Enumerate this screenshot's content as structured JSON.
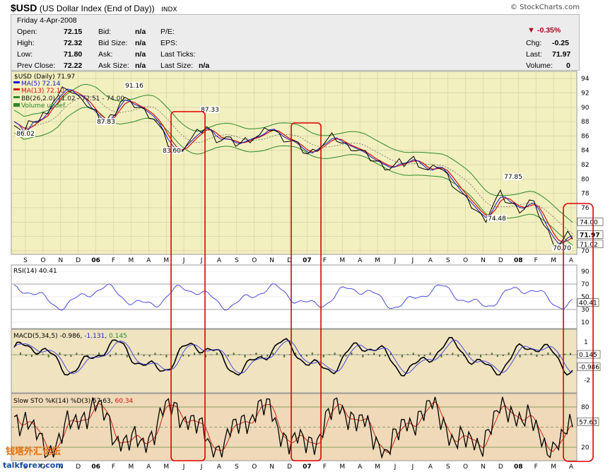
{
  "header": {
    "symbol": "$USD",
    "description": "(US Dollar Index (End of Day))",
    "exchange": "INDX",
    "copyright": "© StockCharts.com"
  },
  "quote": {
    "date": "Friday   4-Apr-2008",
    "open_label": "Open:",
    "open": "72.15",
    "high_label": "High:",
    "high": "72.32",
    "low_label": "Low:",
    "low": "71.80",
    "prev_label": "Prev Close:",
    "prev": "72.22",
    "bid_label": "Bid:",
    "bid": "n/a",
    "bidsize_label": "Bid Size:",
    "bidsize": "n/a",
    "ask_label": "Ask:",
    "ask": "n/a",
    "asksize_label": "Ask Size:",
    "asksize": "n/a",
    "pe_label": "P/E:",
    "eps_label": "EPS:",
    "lastticks_label": "Last Ticks:",
    "lastsize_label": "Last Size:",
    "lastsize": "n/a",
    "pct_change": "-0.35%",
    "chg_label": "Chg:",
    "chg": "-0.25",
    "last_label": "Last:",
    "last": "71.97",
    "volume_label": "Volume:",
    "volume": "0"
  },
  "legend": {
    "price": "$USD (Daily) 71.97",
    "ma5": "MA(5) 72.14",
    "ma13": "MA(13) 72.10",
    "bb": "BB(26,2.0) 71.02 - 72.51 - 74.00",
    "volume": "Volume undef",
    "rsi": "RSI(14) 40.41",
    "macd_name": "MACD(5,34,5)",
    "macd_v1": "-0.986",
    "macd_v2": "-1.131",
    "macd_v3": "0.145",
    "sto_name": "Slow STO %K(14) %D(3)",
    "sto_k": "57.63",
    "sto_d": "60.34"
  },
  "watermark": {
    "cn": "钱塔外汇论坛",
    "site": "talkforex.com"
  },
  "colors": {
    "price_bg": "#f3f0c0",
    "rsi_bg": "#ffffff",
    "macd_bg": "#efe3c0",
    "sto_bg": "#efd9b8",
    "price_line": "#000000",
    "ma5": "#1a1ad0",
    "ma13": "#d01010",
    "bb": "#2a8a2a",
    "rsi_line": "#3a3ad8",
    "highlight": "#e00000"
  },
  "chart_data": [
    {
      "type": "line",
      "title": "$USD (Daily) 71.97",
      "x_ticks": [
        "S",
        "O",
        "N",
        "D",
        "06",
        "F",
        "M",
        "A",
        "M",
        "J",
        "J",
        "A",
        "S",
        "O",
        "N",
        "D",
        "07",
        "F",
        "M",
        "A",
        "M",
        "J",
        "J",
        "A",
        "S",
        "O",
        "N",
        "D",
        "08",
        "F",
        "M",
        "A"
      ],
      "ylim": [
        69.5,
        95
      ],
      "y_ticks": [
        70,
        72,
        74,
        76,
        78,
        80,
        82,
        84,
        86,
        88,
        90,
        92,
        94
      ],
      "right_tags": [
        "74.00",
        "71.97",
        "71.02"
      ],
      "annotations": [
        {
          "label": "86.02",
          "x": "S",
          "y": 86.02
        },
        {
          "label": "87.83",
          "x": "F",
          "y": 87.83
        },
        {
          "label": "91.16",
          "x": "F",
          "y": 91.16
        },
        {
          "label": "83.60",
          "x": "M",
          "y": 83.6
        },
        {
          "label": "87.33",
          "x": "J",
          "y": 87.33
        },
        {
          "label": "74.48",
          "x": "N",
          "y": 74.48
        },
        {
          "label": "77.85",
          "x": "D",
          "y": 77.85
        },
        {
          "label": "70.70",
          "x": "M",
          "y": 70.7
        }
      ],
      "series": [
        {
          "name": "$USD (Daily) 71.97",
          "values": [
            88.0,
            87.2,
            86.2,
            87.6,
            88.3,
            87.9,
            88.9,
            89.6,
            90.8,
            91.3,
            92.3,
            92.8,
            92.0,
            91.5,
            91.7,
            90.4,
            89.6,
            89.1,
            88.1,
            88.0,
            88.6,
            89.4,
            90.8,
            91.2,
            90.5,
            90.3,
            90.0,
            89.5,
            89.0,
            88.5,
            87.4,
            86.2,
            84.9,
            84.3,
            83.6,
            84.4,
            85.1,
            85.7,
            86.4,
            86.8,
            87.3,
            86.4,
            85.6,
            85.5,
            85.7,
            85.3,
            84.9,
            85.0,
            85.4,
            85.6,
            85.9,
            86.0,
            86.6,
            87.1,
            86.8,
            86.1,
            85.7,
            85.4,
            85.2,
            84.6,
            84.0,
            83.5,
            83.8,
            84.4,
            84.8,
            85.3,
            85.9,
            85.6,
            85.0,
            84.7,
            84.5,
            84.1,
            83.9,
            83.4,
            82.9,
            82.5,
            82.2,
            81.8,
            81.5,
            81.8,
            82.3,
            82.1,
            82.6,
            82.8,
            82.2,
            81.6,
            81.1,
            81.4,
            81.9,
            81.3,
            80.4,
            79.5,
            78.6,
            77.8,
            77.1,
            76.3,
            75.6,
            74.8,
            74.5,
            75.8,
            77.0,
            77.9,
            77.1,
            76.6,
            76.3,
            75.8,
            76.0,
            76.9,
            76.4,
            75.2,
            73.6,
            72.5,
            71.4,
            70.7,
            71.4,
            72.2,
            71.97
          ]
        },
        {
          "name": "MA(5) 72.14",
          "values": "smoothed price"
        },
        {
          "name": "MA(13) 72.10",
          "values": "smoothed price"
        },
        {
          "name": "BB(26,2.0) 71.02 - 72.51 - 74.00",
          "values": "bands around price"
        }
      ]
    },
    {
      "type": "line",
      "title": "RSI(14) 40.41",
      "ylim": [
        0,
        100
      ],
      "y_ticks": [
        10,
        30,
        50,
        70,
        90
      ],
      "ref_lines": [
        30,
        70
      ],
      "right_tag": "40.41"
    },
    {
      "type": "line",
      "title": "MACD(5,34,5) -0.986, -1.131, 0.145",
      "ylim": [
        -3,
        2
      ],
      "y_ticks": [
        -2,
        1
      ],
      "right_tags": [
        "0.145",
        "-0.986"
      ]
    },
    {
      "type": "line",
      "title": "Slow STO %K(14) %D(3) 57.63, 60.34",
      "ylim": [
        0,
        100
      ],
      "y_ticks": [
        20,
        80
      ],
      "ref_lines": [
        20,
        50,
        80
      ],
      "right_tag": "57.63"
    }
  ]
}
